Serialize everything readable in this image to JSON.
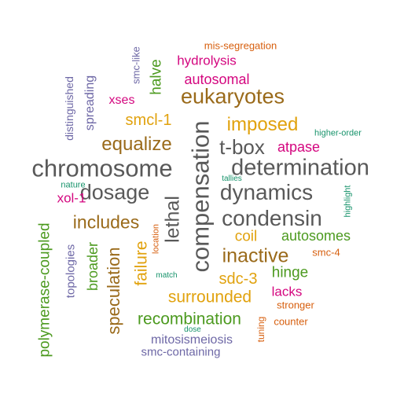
{
  "palette": {
    "gray": "#595959",
    "brown": "#9a6a1a",
    "gold": "#e1a20e",
    "green": "#4c9a1f",
    "magenta": "#d4067f",
    "purple": "#6e68a6",
    "teal": "#17936b",
    "orange": "#d75f0e"
  },
  "words": [
    {
      "text": "chromosome",
      "color": "gray",
      "rot": false
    },
    {
      "text": "determination",
      "color": "gray",
      "rot": false
    },
    {
      "text": "compensation",
      "color": "gray",
      "rot": true
    },
    {
      "text": "dosage",
      "color": "gray",
      "rot": false
    },
    {
      "text": "dynamics",
      "color": "gray",
      "rot": false
    },
    {
      "text": "condensin",
      "color": "gray",
      "rot": false
    },
    {
      "text": "lethal",
      "color": "gray",
      "rot": true
    },
    {
      "text": "t-box",
      "color": "gray",
      "rot": false
    },
    {
      "text": "inactive",
      "color": "brown",
      "rot": false
    },
    {
      "text": "eukaryotes",
      "color": "brown",
      "rot": false
    },
    {
      "text": "equalize",
      "color": "brown",
      "rot": false
    },
    {
      "text": "includes",
      "color": "brown",
      "rot": false
    },
    {
      "text": "speculation",
      "color": "brown",
      "rot": true
    },
    {
      "text": "imposed",
      "color": "gold",
      "rot": false
    },
    {
      "text": "failure",
      "color": "gold",
      "rot": true
    },
    {
      "text": "surrounded",
      "color": "gold",
      "rot": false
    },
    {
      "text": "sdc-3",
      "color": "gold",
      "rot": false
    },
    {
      "text": "coil",
      "color": "gold",
      "rot": false
    },
    {
      "text": "smcl-1",
      "color": "gold",
      "rot": false
    },
    {
      "text": "recombination",
      "color": "green",
      "rot": false
    },
    {
      "text": "polymerase-coupled",
      "color": "green",
      "rot": true
    },
    {
      "text": "broader",
      "color": "green",
      "rot": true
    },
    {
      "text": "hinge",
      "color": "green",
      "rot": false
    },
    {
      "text": "autosomes",
      "color": "green",
      "rot": false
    },
    {
      "text": "halve",
      "color": "green",
      "rot": true
    },
    {
      "text": "hydrolysis",
      "color": "magenta",
      "rot": false
    },
    {
      "text": "autosomal",
      "color": "magenta",
      "rot": false
    },
    {
      "text": "xses",
      "color": "magenta",
      "rot": false
    },
    {
      "text": "atpase",
      "color": "magenta",
      "rot": false
    },
    {
      "text": "xol-1",
      "color": "magenta",
      "rot": false
    },
    {
      "text": "lacks",
      "color": "magenta",
      "rot": false
    },
    {
      "text": "mitosismeiosis",
      "color": "purple",
      "rot": false
    },
    {
      "text": "smc-containing",
      "color": "purple",
      "rot": false
    },
    {
      "text": "topologies",
      "color": "purple",
      "rot": true
    },
    {
      "text": "distinguished",
      "color": "purple",
      "rot": true
    },
    {
      "text": "spreading",
      "color": "purple",
      "rot": true
    },
    {
      "text": "smc-like",
      "color": "purple",
      "rot": true
    },
    {
      "text": "higher-order",
      "color": "teal",
      "rot": false
    },
    {
      "text": "highlight",
      "color": "teal",
      "rot": true
    },
    {
      "text": "nature",
      "color": "teal",
      "rot": false
    },
    {
      "text": "match",
      "color": "teal",
      "rot": false
    },
    {
      "text": "dose",
      "color": "teal",
      "rot": false
    },
    {
      "text": "tallies",
      "color": "teal",
      "rot": false
    },
    {
      "text": "mis-segregation",
      "color": "orange",
      "rot": false
    },
    {
      "text": "smc-4",
      "color": "orange",
      "rot": false
    },
    {
      "text": "stronger",
      "color": "orange",
      "rot": false
    },
    {
      "text": "counter",
      "color": "orange",
      "rot": false
    },
    {
      "text": "tuning",
      "color": "orange",
      "rot": true
    },
    {
      "text": "location",
      "color": "orange",
      "rot": true
    }
  ]
}
